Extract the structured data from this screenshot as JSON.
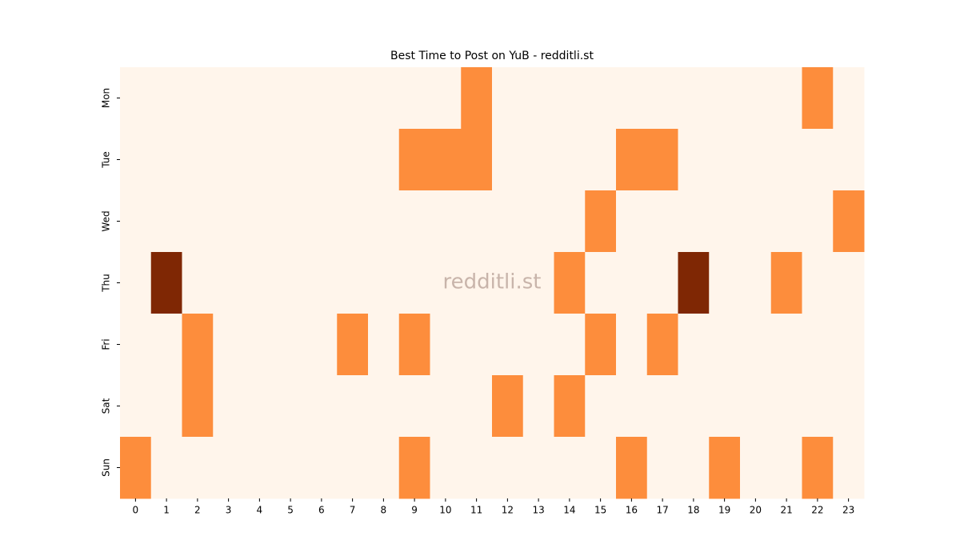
{
  "chart_data": {
    "type": "heatmap",
    "title": "Best Time to Post on YuB - redditli.st",
    "watermark": "redditli.st",
    "columns": [
      0,
      1,
      2,
      3,
      4,
      5,
      6,
      7,
      8,
      9,
      10,
      11,
      12,
      13,
      14,
      15,
      16,
      17,
      18,
      19,
      20,
      21,
      22,
      23
    ],
    "rows": [
      "Mon",
      "Tue",
      "Wed",
      "Thu",
      "Fri",
      "Sat",
      "Sun"
    ],
    "values": [
      [
        0,
        0,
        0,
        0,
        0,
        0,
        0,
        0,
        0,
        0,
        0,
        1,
        0,
        0,
        0,
        0,
        0,
        0,
        0,
        0,
        0,
        0,
        1,
        0
      ],
      [
        0,
        0,
        0,
        0,
        0,
        0,
        0,
        0,
        0,
        1,
        1,
        1,
        0,
        0,
        0,
        0,
        1,
        1,
        0,
        0,
        0,
        0,
        0,
        0
      ],
      [
        0,
        0,
        0,
        0,
        0,
        0,
        0,
        0,
        0,
        0,
        0,
        0,
        0,
        0,
        0,
        1,
        0,
        0,
        0,
        0,
        0,
        0,
        0,
        1
      ],
      [
        0,
        2,
        0,
        0,
        0,
        0,
        0,
        0,
        0,
        0,
        0,
        0,
        0,
        0,
        1,
        0,
        0,
        0,
        2,
        0,
        0,
        1,
        0,
        0
      ],
      [
        0,
        0,
        1,
        0,
        0,
        0,
        0,
        1,
        0,
        1,
        0,
        0,
        0,
        0,
        0,
        1,
        0,
        1,
        0,
        0,
        0,
        0,
        0,
        0
      ],
      [
        0,
        0,
        1,
        0,
        0,
        0,
        0,
        0,
        0,
        0,
        0,
        0,
        1,
        0,
        1,
        0,
        0,
        0,
        0,
        0,
        0,
        0,
        0,
        0
      ],
      [
        1,
        0,
        0,
        0,
        0,
        0,
        0,
        0,
        0,
        1,
        0,
        0,
        0,
        0,
        0,
        0,
        1,
        0,
        0,
        1,
        0,
        0,
        1,
        0
      ]
    ],
    "colorscale": [
      [
        0,
        "#fff5eb"
      ],
      [
        1,
        "#fd8d3c"
      ],
      [
        2,
        "#7f2704"
      ]
    ]
  }
}
